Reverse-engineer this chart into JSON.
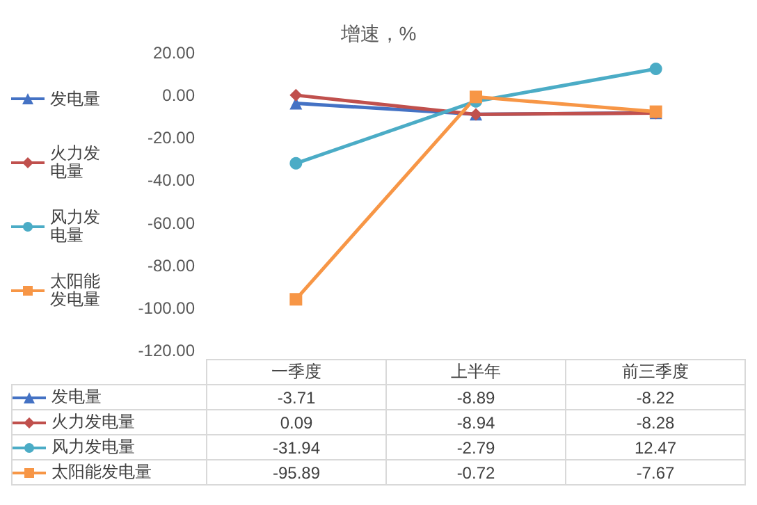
{
  "chart_data": {
    "type": "line",
    "title": "增速，%",
    "categories": [
      "一季度",
      "上半年",
      "前三季度"
    ],
    "series": [
      {
        "name": "发电量",
        "color": "#4472c4",
        "marker": "triangle",
        "values": [
          -3.71,
          -8.89,
          -8.22
        ]
      },
      {
        "name": "火力发电量",
        "color": "#c0504d",
        "marker": "diamond",
        "values": [
          0.09,
          -8.94,
          -8.28
        ]
      },
      {
        "name": "风力发电量",
        "color": "#4bacc6",
        "marker": "circle",
        "values": [
          -31.94,
          -2.79,
          12.47
        ]
      },
      {
        "name": "太阳能发电量",
        "color": "#f79646",
        "marker": "square",
        "values": [
          -95.89,
          -0.72,
          -7.67
        ]
      }
    ],
    "ylim": [
      -120,
      20
    ],
    "yticks": [
      {
        "value": -120,
        "label": "-120.00"
      },
      {
        "value": -100,
        "label": "-100.00"
      },
      {
        "value": -80,
        "label": "-80.00"
      },
      {
        "value": -60,
        "label": "-60.00"
      },
      {
        "value": -40,
        "label": "-40.00"
      },
      {
        "value": -20,
        "label": "-20.00"
      },
      {
        "value": 0,
        "label": "0.00"
      },
      {
        "value": 20,
        "label": "20.00"
      }
    ],
    "grid": false,
    "legend": "left",
    "data_labels": true
  }
}
